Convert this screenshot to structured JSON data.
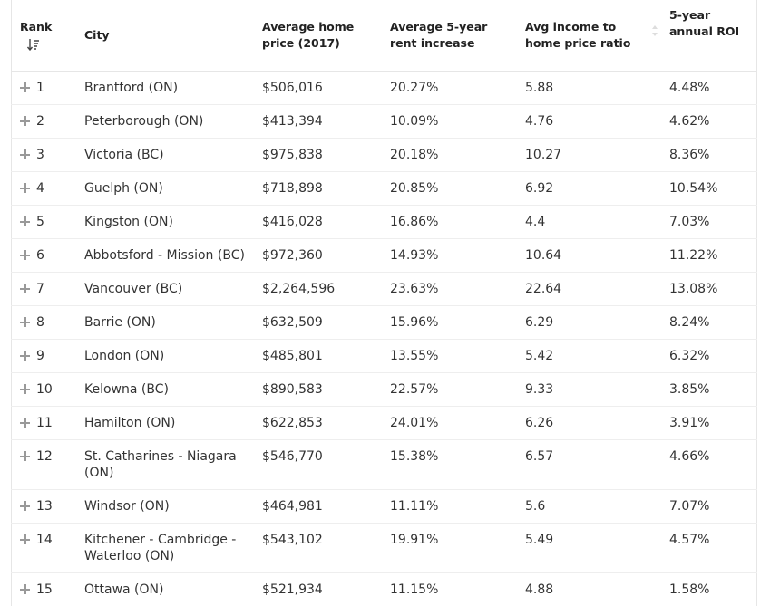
{
  "table": {
    "header": [
      "Rank",
      "City",
      "Average home price (2017)",
      "Average 5-year rent increase",
      "Avg income to home price ratio",
      "5-year annual ROI"
    ],
    "rows": [
      [
        "1",
        "Brantford (ON)",
        "$506,016",
        "20.27%",
        "5.88",
        "4.48%"
      ],
      [
        "2",
        "Peterborough (ON)",
        "$413,394",
        "10.09%",
        "4.76",
        "4.62%"
      ],
      [
        "3",
        "Victoria (BC)",
        "$975,838",
        "20.18%",
        "10.27",
        "8.36%"
      ],
      [
        "4",
        "Guelph (ON)",
        "$718,898",
        "20.85%",
        "6.92",
        "10.54%"
      ],
      [
        "5",
        "Kingston (ON)",
        "$416,028",
        "16.86%",
        "4.4",
        "7.03%"
      ],
      [
        "6",
        "Abbotsford - Mission (BC)",
        "$972,360",
        "14.93%",
        "10.64",
        "11.22%"
      ],
      [
        "7",
        "Vancouver (BC)",
        "$2,264,596",
        "23.63%",
        "22.64",
        "13.08%"
      ],
      [
        "8",
        "Barrie (ON)",
        "$632,509",
        "15.96%",
        "6.29",
        "8.24%"
      ],
      [
        "9",
        "London (ON)",
        "$485,801",
        "13.55%",
        "5.42",
        "6.32%"
      ],
      [
        "10",
        "Kelowna (BC)",
        "$890,583",
        "22.57%",
        "9.33",
        "3.85%"
      ],
      [
        "11",
        "Hamilton (ON)",
        "$622,853",
        "24.01%",
        "6.26",
        "3.91%"
      ],
      [
        "12",
        "St. Catharines - Niagara (ON)",
        "$546,770",
        "15.38%",
        "6.57",
        "4.66%"
      ],
      [
        "13",
        "Windsor (ON)",
        "$464,981",
        "11.11%",
        "5.6",
        "7.07%"
      ],
      [
        "14",
        "Kitchener - Cambridge - Waterloo (ON)",
        "$543,102",
        "19.91%",
        "5.49",
        "4.57%"
      ],
      [
        "15",
        "Ottawa (ON)",
        "$521,934",
        "11.15%",
        "4.88",
        "1.58%"
      ]
    ]
  }
}
